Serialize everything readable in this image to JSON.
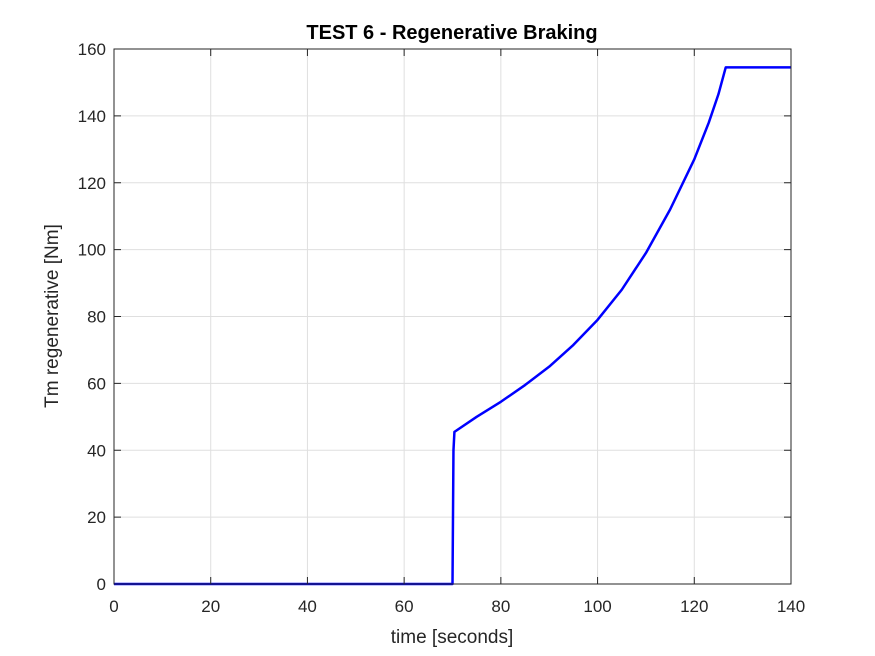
{
  "chart_data": {
    "type": "line",
    "title": "TEST 6 - Regenerative Braking",
    "xlabel": "time [seconds]",
    "ylabel": "Tm regenerative [Nm]",
    "xlim": [
      0,
      140
    ],
    "ylim": [
      0,
      160
    ],
    "xticks": [
      0,
      20,
      40,
      60,
      80,
      100,
      120,
      140
    ],
    "yticks": [
      0,
      20,
      40,
      60,
      80,
      100,
      120,
      140,
      160
    ],
    "grid": true,
    "legend": "none",
    "series": [
      {
        "color": "#0000ff",
        "x": [
          0,
          70,
          70.2,
          70.4,
          75,
          80,
          85,
          90,
          95,
          100,
          105,
          110,
          115,
          120,
          123,
          125,
          126.5,
          130,
          140
        ],
        "y": [
          0,
          0,
          40,
          45.5,
          50,
          54.5,
          59.5,
          65,
          71.5,
          79,
          88,
          99,
          112,
          127,
          138,
          146.5,
          154.5,
          154.5,
          154.5
        ]
      }
    ]
  }
}
